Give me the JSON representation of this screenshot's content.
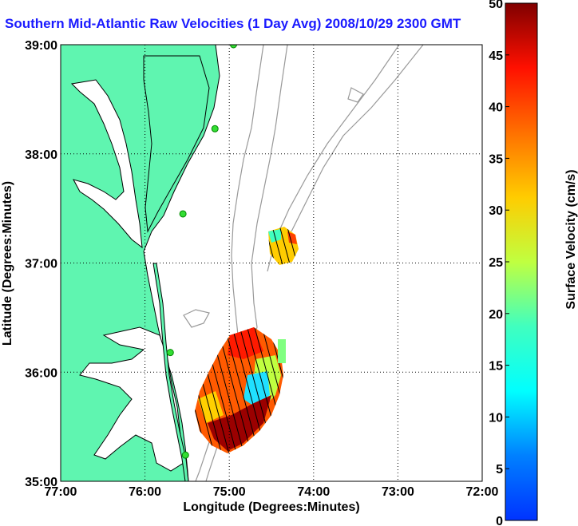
{
  "title": "Southern Mid-Atlantic Raw Velocities (1 Day Avg) 2008/10/29 2300 GMT",
  "xaxis": {
    "label": "Longitude (Degrees:Minutes)",
    "ticks": [
      "77:00",
      "76:00",
      "75:00",
      "74:00",
      "73:00",
      "72:00"
    ]
  },
  "yaxis": {
    "label": "Latitude (Degrees:Minutes)",
    "ticks": [
      "39:00",
      "38:00",
      "37:00",
      "36:00",
      "35:00"
    ]
  },
  "colorbar": {
    "label": "Surface Velocity (cm/s)",
    "ticks": [
      "50",
      "45",
      "40",
      "35",
      "30",
      "25",
      "20",
      "15",
      "10",
      "5",
      "0"
    ],
    "min": 0,
    "max": 50
  },
  "colors": {
    "land": "#5ff5b0",
    "coastline": "#000000",
    "bathymetry": "#999999",
    "grid": "#000000",
    "title": "#1a1aff"
  },
  "map": {
    "lon_range": [
      -77,
      -72
    ],
    "lat_range": [
      35,
      39
    ],
    "grid": "dotted",
    "stations": [
      {
        "lon": -74.95,
        "lat": 39.0
      },
      {
        "lon": -75.17,
        "lat": 38.23
      },
      {
        "lon": -75.55,
        "lat": 37.45
      },
      {
        "lon": -75.7,
        "lat": 36.18
      },
      {
        "lon": -75.52,
        "lat": 35.24
      }
    ]
  }
}
